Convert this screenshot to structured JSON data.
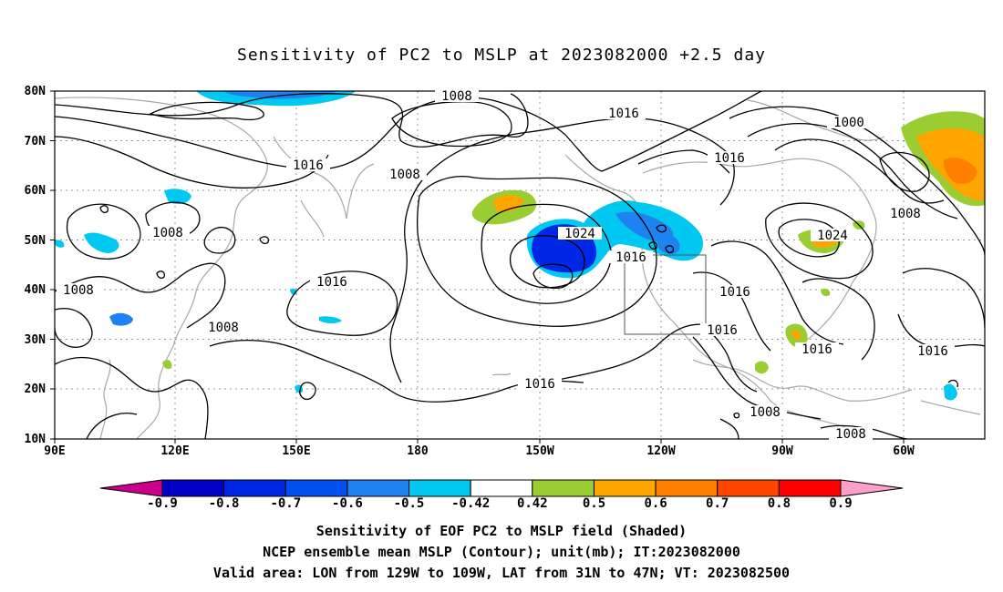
{
  "title": "Sensitivity of PC2 to MSLP at 2023082000 +2.5 day",
  "axes": {
    "lat_labels": [
      "80N",
      "70N",
      "60N",
      "50N",
      "40N",
      "30N",
      "20N",
      "10N"
    ],
    "lon_labels": [
      "90E",
      "120E",
      "150E",
      "180",
      "150W",
      "120W",
      "90W",
      "60W"
    ]
  },
  "contour_labels": {
    "c1008_top": "1008",
    "c1016_top": "1016",
    "c1000_ne": "1000",
    "c1016_nw": "1016",
    "c1008_nw": "1008",
    "c1016_mid": "1016",
    "c1008_left": "1008",
    "c1024_pac": "1024",
    "c1008_e": "1008",
    "c1024_e": "1024",
    "c1016_asia": "1016",
    "c1016_box": "1016",
    "c1016_w1": "1016",
    "c1008_far": "1008",
    "c1016_w2": "1016",
    "c1008_asia2": "1008",
    "c1016_mex": "1016",
    "c1016_sub": "1016",
    "c1016_atl": "1016",
    "c1008_tr": "1008",
    "c1008_bot": "1008"
  },
  "colorbar": {
    "labels": [
      "-0.9",
      "-0.8",
      "-0.7",
      "-0.6",
      "-0.5",
      "-0.42",
      "0.42",
      "0.5",
      "0.6",
      "0.7",
      "0.8",
      "0.9"
    ],
    "colors": [
      "#0000c8",
      "#0026e6",
      "#0050f0",
      "#1e82f0",
      "#00c8f0",
      "#ffffff",
      "#9acd32",
      "#ffa500",
      "#ff7f00",
      "#ff4500",
      "#ff0000"
    ],
    "low_end_color": "#c8008c",
    "high_end_color": "#ffa0c8"
  },
  "captions": {
    "line1": "Sensitivity of EOF PC2 to MSLP field (Shaded)",
    "line2": "NCEP ensemble mean MSLP (Contour); unit(mb); IT:2023082000",
    "line3": "Valid area: LON from 129W to 109W, LAT from 31N to 47N; VT: 2023082500"
  }
}
